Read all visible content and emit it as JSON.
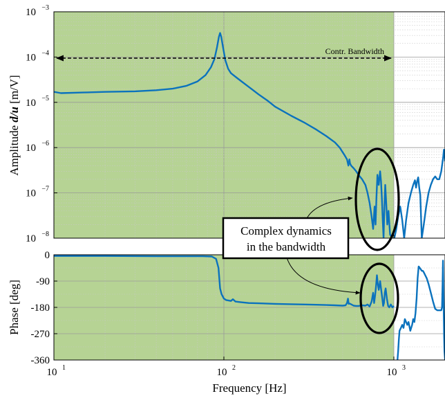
{
  "chart_data": [
    {
      "id": "amplitude",
      "type": "line",
      "x_scale": "log",
      "y_scale": "log",
      "xlim": [
        10,
        2000
      ],
      "ylim": [
        1e-08,
        0.001
      ],
      "ylabel": "Amplitude d/u [m/V]",
      "ylabel_parts": {
        "prefix": "Amplitude ",
        "math": "d/u",
        "suffix": " [m/V]"
      },
      "yticks": [
        {
          "value": 1e-08,
          "base": "10",
          "exp": "−8"
        },
        {
          "value": 1e-07,
          "base": "10",
          "exp": "−7"
        },
        {
          "value": 1e-06,
          "base": "10",
          "exp": "−6"
        },
        {
          "value": 1e-05,
          "base": "10",
          "exp": "−5"
        },
        {
          "value": 0.0001,
          "base": "10",
          "exp": "−4"
        },
        {
          "value": 0.001,
          "base": "10",
          "exp": "−3"
        }
      ],
      "grid": true,
      "shaded_region": {
        "x": [
          10,
          1000
        ],
        "color": "#b6d394"
      },
      "annotation": {
        "text": "Contr. Bandwidth",
        "x_range": [
          10,
          1000
        ],
        "y": 0.0001
      },
      "series": [
        {
          "color": "#0b72bd",
          "points": [
            [
              10,
              1.7e-05
            ],
            [
              11,
              1.6e-05
            ],
            [
              15,
              1.65e-05
            ],
            [
              20,
              1.7e-05
            ],
            [
              30,
              1.75e-05
            ],
            [
              40,
              1.85e-05
            ],
            [
              50,
              2e-05
            ],
            [
              60,
              2.3e-05
            ],
            [
              70,
              2.9e-05
            ],
            [
              78,
              4e-05
            ],
            [
              84,
              6e-05
            ],
            [
              88,
              9e-05
            ],
            [
              91,
              0.00016
            ],
            [
              93.5,
              0.00028
            ],
            [
              95,
              0.00034
            ],
            [
              96.5,
              0.00028
            ],
            [
              99,
              0.00016
            ],
            [
              102,
              8.5e-05
            ],
            [
              106,
              5.5e-05
            ],
            [
              110,
              4.4e-05
            ],
            [
              120,
              3.4e-05
            ],
            [
              140,
              2.2e-05
            ],
            [
              160,
              1.5e-05
            ],
            [
              180,
              1.1e-05
            ],
            [
              200,
              8e-06
            ],
            [
              250,
              5e-06
            ],
            [
              300,
              3.5e-06
            ],
            [
              350,
              2.5e-06
            ],
            [
              400,
              1.8e-06
            ],
            [
              450,
              1.3e-06
            ],
            [
              480,
              1e-06
            ],
            [
              510,
              7e-07
            ],
            [
              530,
              5.5e-07
            ],
            [
              540,
              4e-07
            ],
            [
              548,
              5.5e-07
            ],
            [
              552,
              4.5e-07
            ],
            [
              560,
              4e-07
            ],
            [
              580,
              3.5e-07
            ],
            [
              600,
              3e-07
            ],
            [
              620,
              2.5e-07
            ],
            [
              650,
              2e-07
            ],
            [
              680,
              1.5e-07
            ],
            [
              700,
              1e-07
            ],
            [
              720,
              6e-08
            ],
            [
              740,
              3e-08
            ],
            [
              755,
              1.6e-08
            ],
            [
              770,
              5e-08
            ],
            [
              780,
              2e-08
            ],
            [
              790,
              8e-08
            ],
            [
              800,
              2.5e-07
            ],
            [
              815,
              1.5e-07
            ],
            [
              830,
              3e-07
            ],
            [
              840,
              1.8e-07
            ],
            [
              850,
              8e-08
            ],
            [
              860,
              2.5e-08
            ],
            [
              870,
              1e-08
            ],
            [
              880,
              5e-08
            ],
            [
              890,
              1.5e-07
            ],
            [
              900,
              7e-08
            ],
            [
              915,
              2e-08
            ],
            [
              930,
              4e-08
            ],
            [
              950,
              1.2e-08
            ],
            [
              1000,
              9e-09
            ],
            [
              1030,
              1.5e-08
            ],
            [
              1060,
              3e-08
            ],
            [
              1090,
              5e-08
            ],
            [
              1120,
              2.5e-08
            ],
            [
              1150,
              1e-08
            ],
            [
              1180,
              2.5e-08
            ],
            [
              1220,
              6e-08
            ],
            [
              1260,
              1e-07
            ],
            [
              1300,
              1.5e-07
            ],
            [
              1330,
              1.9e-07
            ],
            [
              1350,
              1.3e-07
            ],
            [
              1370,
              1.8e-07
            ],
            [
              1390,
              2.2e-07
            ],
            [
              1410,
              1.3e-07
            ],
            [
              1430,
              9e-08
            ],
            [
              1460,
              1e-08
            ],
            [
              1500,
              2e-08
            ],
            [
              1550,
              5e-08
            ],
            [
              1600,
              1e-07
            ],
            [
              1650,
              1.5e-07
            ],
            [
              1700,
              2e-07
            ],
            [
              1750,
              2.3e-07
            ],
            [
              1800,
              2e-07
            ],
            [
              1850,
              2e-07
            ],
            [
              1900,
              3e-07
            ],
            [
              1950,
              6e-07
            ],
            [
              1970,
              9e-07
            ],
            [
              1985,
              8e-07
            ],
            [
              2000,
              5e-07
            ]
          ]
        }
      ]
    },
    {
      "id": "phase",
      "type": "line",
      "x_scale": "log",
      "y_scale": "linear",
      "xlim": [
        10,
        2000
      ],
      "ylim": [
        -360,
        0
      ],
      "ylabel": "Phase [deg]",
      "xlabel": "Frequency [Hz]",
      "yticks": [
        {
          "value": 0,
          "label": "0"
        },
        {
          "value": -90,
          "label": "-90"
        },
        {
          "value": -180,
          "label": "-180"
        },
        {
          "value": -270,
          "label": "-270"
        },
        {
          "value": -360,
          "label": "-360"
        }
      ],
      "xticks": [
        {
          "value": 10,
          "base": "10",
          "exp": "1"
        },
        {
          "value": 100,
          "base": "10",
          "exp": "2"
        },
        {
          "value": 1000,
          "base": "10",
          "exp": "3"
        }
      ],
      "grid": true,
      "shaded_region": {
        "x": [
          10,
          1000
        ],
        "color": "#b6d394"
      },
      "series": [
        {
          "color": "#0b72bd",
          "points": [
            [
              10,
              -4
            ],
            [
              20,
              -4
            ],
            [
              40,
              -5
            ],
            [
              60,
              -5
            ],
            [
              75,
              -5
            ],
            [
              85,
              -6
            ],
            [
              90,
              -14
            ],
            [
              93,
              -45
            ],
            [
              95,
              -115
            ],
            [
              97,
              -135
            ],
            [
              100,
              -150
            ],
            [
              103,
              -155
            ],
            [
              106,
              -156
            ],
            [
              110,
              -158
            ],
            [
              113,
              -152
            ],
            [
              117,
              -160
            ],
            [
              125,
              -162
            ],
            [
              140,
              -165
            ],
            [
              160,
              -166
            ],
            [
              200,
              -168
            ],
            [
              250,
              -169
            ],
            [
              300,
              -170
            ],
            [
              350,
              -171
            ],
            [
              400,
              -172
            ],
            [
              450,
              -173
            ],
            [
              500,
              -174
            ],
            [
              520,
              -173
            ],
            [
              530,
              -165
            ],
            [
              537,
              -150
            ],
            [
              542,
              -168
            ],
            [
              550,
              -167
            ],
            [
              580,
              -174
            ],
            [
              600,
              -175
            ],
            [
              620,
              -175
            ],
            [
              650,
              -173
            ],
            [
              680,
              -174
            ],
            [
              700,
              -170
            ],
            [
              720,
              -177
            ],
            [
              740,
              -160
            ],
            [
              755,
              -130
            ],
            [
              765,
              -165
            ],
            [
              775,
              -140
            ],
            [
              785,
              -110
            ],
            [
              795,
              -70
            ],
            [
              805,
              -100
            ],
            [
              815,
              -120
            ],
            [
              830,
              -90
            ],
            [
              840,
              -115
            ],
            [
              855,
              -150
            ],
            [
              865,
              -175
            ],
            [
              875,
              -165
            ],
            [
              885,
              -130
            ],
            [
              895,
              -115
            ],
            [
              910,
              -150
            ],
            [
              925,
              -175
            ],
            [
              940,
              -180
            ],
            [
              960,
              -170
            ],
            [
              980,
              -180
            ],
            [
              1000,
              -175
            ]
          ]
        },
        {
          "color": "#0b72bd",
          "points": [
            [
              1050,
              -360
            ],
            [
              1060,
              -330
            ],
            [
              1070,
              -290
            ],
            [
              1080,
              -260
            ],
            [
              1100,
              -250
            ],
            [
              1120,
              -240
            ],
            [
              1140,
              -250
            ],
            [
              1160,
              -220
            ],
            [
              1180,
              -230
            ],
            [
              1200,
              -240
            ],
            [
              1220,
              -230
            ],
            [
              1250,
              -260
            ],
            [
              1280,
              -240
            ],
            [
              1300,
              -220
            ],
            [
              1320,
              -230
            ],
            [
              1340,
              -200
            ],
            [
              1360,
              -150
            ],
            [
              1380,
              -80
            ],
            [
              1400,
              -40
            ],
            [
              1420,
              -45
            ],
            [
              1440,
              -50
            ],
            [
              1460,
              -55
            ],
            [
              1480,
              -55
            ],
            [
              1500,
              -60
            ],
            [
              1530,
              -70
            ],
            [
              1560,
              -80
            ],
            [
              1600,
              -100
            ],
            [
              1650,
              -130
            ],
            [
              1700,
              -160
            ],
            [
              1750,
              -185
            ],
            [
              1800,
              -190
            ],
            [
              1850,
              -190
            ],
            [
              1900,
              -190
            ],
            [
              1920,
              -180
            ],
            [
              1935,
              -100
            ],
            [
              1945,
              -20
            ],
            [
              1955,
              -100
            ],
            [
              1965,
              -200
            ],
            [
              1975,
              -280
            ],
            [
              1985,
              -330
            ],
            [
              2000,
              -360
            ]
          ]
        }
      ]
    }
  ],
  "callout": {
    "line1": "Complex dynamics",
    "line2": "in the bandwidth"
  }
}
